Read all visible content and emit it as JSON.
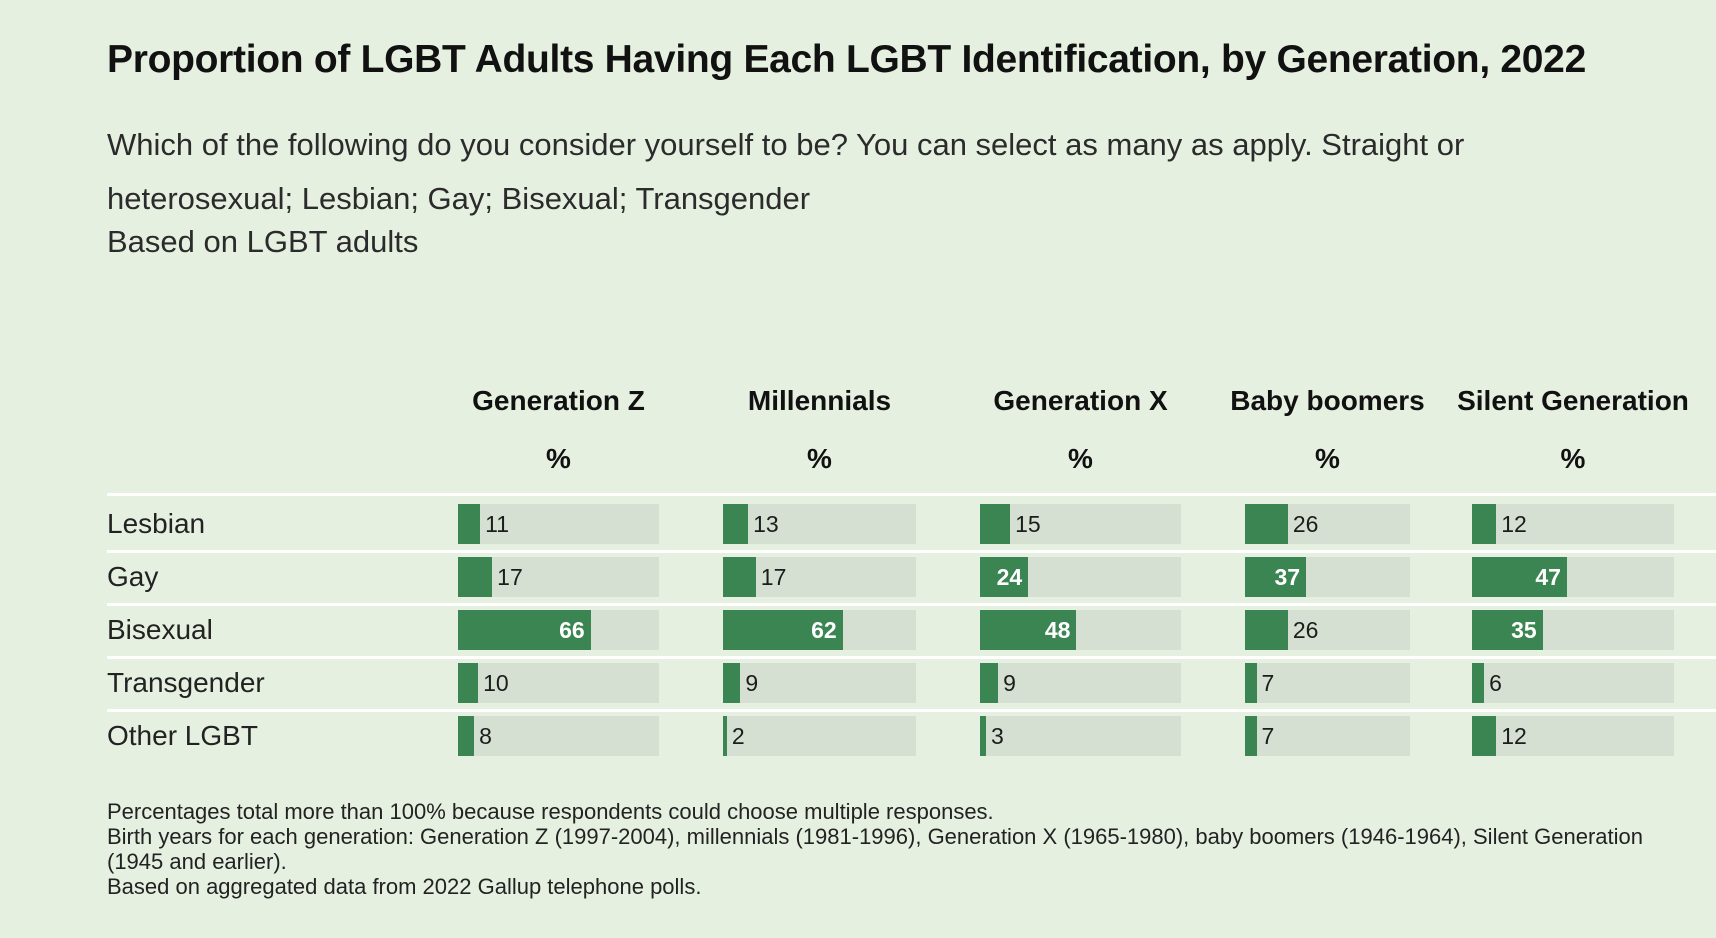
{
  "title": "Proportion of LGBT Adults Having Each LGBT Identification, by Generation, 2022",
  "subtitle": "Which of the following do you consider yourself to be? You can select as many as apply. Straight or heterosexual; Lesbian; Gay; Bisexual; Transgender",
  "base_note": "Based on LGBT adults",
  "unit_label": "%",
  "notes": [
    "Percentages total more than 100% because respondents could choose multiple responses.",
    "Birth years for each generation: Generation Z (1997-2004), millennials (1981-1996), Generation X (1965-1980), baby boomers (1946-1964), Silent Generation (1945 and earlier).",
    "Based on aggregated data from 2022 Gallup telephone polls."
  ],
  "colors": {
    "background": "#e6f0e1",
    "bar_fill": "#3a8551",
    "bar_track": "#d5e0d3"
  },
  "chart_data": {
    "type": "bar",
    "orientation": "horizontal",
    "title": "Proportion of LGBT Adults Having Each LGBT Identification, by Generation, 2022",
    "categories": [
      "Lesbian",
      "Gay",
      "Bisexual",
      "Transgender",
      "Other LGBT"
    ],
    "series": [
      {
        "name": "Generation Z",
        "values": [
          11,
          17,
          66,
          10,
          8
        ]
      },
      {
        "name": "Millennials",
        "values": [
          13,
          17,
          62,
          9,
          2
        ]
      },
      {
        "name": "Generation X",
        "values": [
          15,
          24,
          48,
          9,
          3
        ]
      },
      {
        "name": "Baby boomers",
        "values": [
          26,
          37,
          26,
          7,
          7
        ]
      },
      {
        "name": "Silent Generation",
        "values": [
          12,
          47,
          35,
          6,
          12
        ]
      }
    ],
    "xlim": [
      0,
      100
    ],
    "grid": false,
    "legend": "none"
  }
}
